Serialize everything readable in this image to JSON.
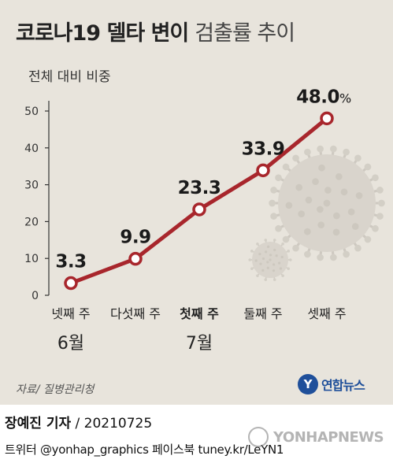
{
  "header": {
    "title_bold": "코로나19 델타 변이",
    "title_light": "검출률 추이"
  },
  "chart_data": {
    "type": "line",
    "title": "코로나19 델타 변이 검출률 추이",
    "ylabel": "전체 대비 비중",
    "ylim": [
      0,
      50
    ],
    "yticks": [
      "0",
      "10",
      "20",
      "30",
      "40",
      "50"
    ],
    "categories": [
      "넷째 주",
      "다섯째 주",
      "첫째 주",
      "둘째 주",
      "셋째 주"
    ],
    "month_labels": [
      {
        "label": "6월",
        "under": 0
      },
      {
        "label": "7월",
        "under": 2
      }
    ],
    "values": [
      3.3,
      9.9,
      23.3,
      33.9,
      48.0
    ],
    "value_labels": [
      "3.3",
      "9.9",
      "23.3",
      "33.9",
      "48.0"
    ],
    "last_unit": "%",
    "line_color": "#a8262c",
    "grid": false
  },
  "footer": {
    "source": "자료/ 질병관리청",
    "logo_mark": "Y",
    "logo_text": "연합뉴스",
    "reporter_name": "장예진 기자",
    "reporter_date": " / 20210725",
    "social": "트위터 @yonhap_graphics  페이스북 tuney.kr/LeYN1",
    "watermark": "YONHAPNEWS"
  }
}
